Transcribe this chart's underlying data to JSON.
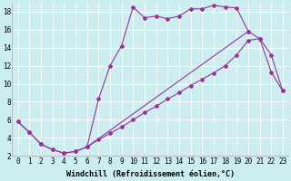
{
  "xlabel": "Windchill (Refroidissement éolien,°C)",
  "background_color": "#cceef0",
  "line_color": "#993399",
  "grid_color": "#ffffff",
  "xlim": [
    -0.5,
    23.5
  ],
  "ylim": [
    2,
    19
  ],
  "xticks": [
    0,
    1,
    2,
    3,
    4,
    5,
    6,
    7,
    8,
    9,
    10,
    11,
    12,
    13,
    14,
    15,
    16,
    17,
    18,
    19,
    20,
    21,
    22,
    23
  ],
  "yticks": [
    2,
    4,
    6,
    8,
    10,
    12,
    14,
    16,
    18
  ],
  "line1_x": [
    0,
    1,
    2,
    3,
    4,
    5,
    6,
    7,
    8,
    9,
    10,
    11,
    12,
    13,
    14,
    15,
    16,
    17,
    18,
    19,
    20
  ],
  "line1_y": [
    5.8,
    4.6,
    3.3,
    2.7,
    2.3,
    2.5,
    3.0,
    8.3,
    12.0,
    14.2,
    18.5,
    17.3,
    17.5,
    17.2,
    17.5,
    18.3,
    18.3,
    18.7,
    18.5,
    18.4,
    15.8
  ],
  "line2_x": [
    0,
    1,
    2,
    3,
    4,
    5,
    6,
    20,
    21,
    22,
    23
  ],
  "line2_y": [
    5.8,
    4.6,
    3.3,
    2.7,
    2.3,
    2.5,
    3.0,
    15.8,
    15.0,
    13.2,
    9.2
  ],
  "line3_x": [
    6,
    7,
    8,
    9,
    10,
    11,
    12,
    13,
    14,
    15,
    16,
    17,
    18,
    19,
    20,
    21,
    22,
    23
  ],
  "line3_y": [
    3.0,
    3.8,
    4.5,
    5.2,
    6.0,
    6.8,
    7.5,
    8.3,
    9.0,
    9.8,
    10.5,
    11.2,
    12.0,
    13.2,
    14.8,
    15.0,
    11.3,
    9.2
  ],
  "title_fontsize": 7,
  "xlabel_fontsize": 6,
  "tick_fontsize": 5.5
}
